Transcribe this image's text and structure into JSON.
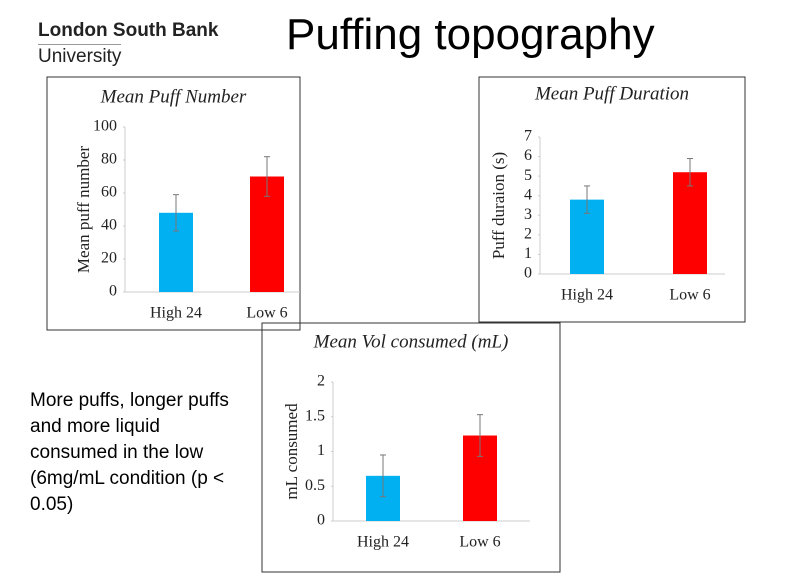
{
  "slide": {
    "title": "Puffing topography",
    "logo_line1": "London South Bank",
    "logo_line2": "University",
    "note": "More puffs, longer puffs and more liquid consumed in the low (6mg/mL condition (p < 0.05)"
  },
  "chart_data": [
    {
      "type": "bar",
      "title": "Mean Puff Number",
      "y_label": "Mean puff number",
      "categories": [
        "High 24",
        "Low 6"
      ],
      "values": [
        48,
        70
      ],
      "errors": [
        11,
        12
      ],
      "colors": [
        "#00b0f0",
        "#ff0000"
      ],
      "ylim": [
        0,
        100
      ],
      "yticks": [
        0,
        20,
        40,
        60,
        80,
        100
      ]
    },
    {
      "type": "bar",
      "title": "Mean Puff Duration",
      "y_label": "Puff duraion (s)",
      "categories": [
        "High 24",
        "Low 6"
      ],
      "values": [
        3.8,
        5.2
      ],
      "errors": [
        0.7,
        0.7
      ],
      "colors": [
        "#00b0f0",
        "#ff0000"
      ],
      "ylim": [
        0,
        7
      ],
      "yticks": [
        0,
        1,
        2,
        3,
        4,
        5,
        6,
        7
      ]
    },
    {
      "type": "bar",
      "title": "Mean Vol consumed (mL)",
      "y_label": "mL consumed",
      "categories": [
        "High 24",
        "Low 6"
      ],
      "values": [
        0.65,
        1.23
      ],
      "errors": [
        0.3,
        0.3
      ],
      "colors": [
        "#00b0f0",
        "#ff0000"
      ],
      "ylim": [
        0,
        2
      ],
      "yticks": [
        0,
        0.5,
        1,
        1.5,
        2
      ]
    }
  ]
}
